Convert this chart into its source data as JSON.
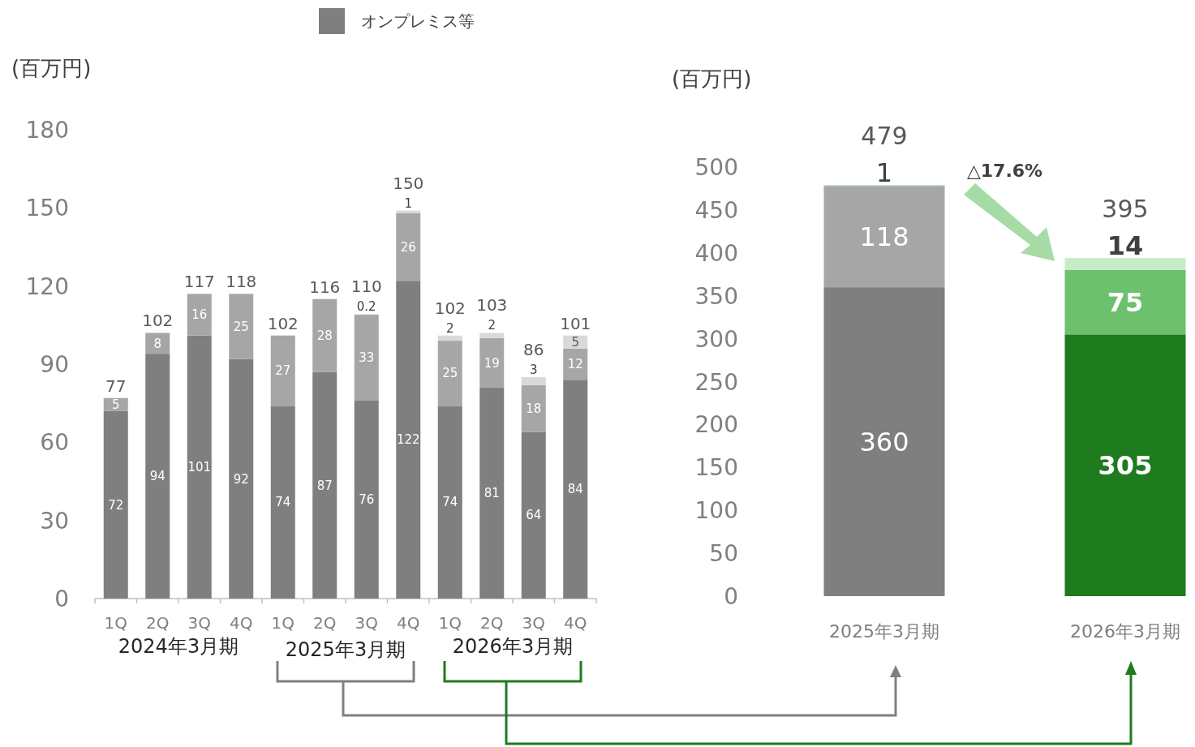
{
  "chart_data": [
    {
      "type": "bar",
      "stacked": true,
      "ylabel": "(百万円)",
      "legend": "top",
      "data_labels": true,
      "categories": [
        "1Q",
        "2Q",
        "3Q",
        "4Q",
        "1Q",
        "2Q",
        "3Q",
        "4Q",
        "1Q",
        "2Q",
        "3Q",
        "4Q"
      ],
      "series": [
        {
          "name": "オンプレミス等",
          "color": "#7f7f7f",
          "values": [
            72,
            94,
            101,
            92,
            74,
            87,
            76,
            122,
            74,
            81,
            64,
            84
          ]
        },
        {
          "color": "#a6a6a6",
          "values": [
            5,
            8,
            16,
            25,
            27,
            28,
            33,
            26,
            25,
            19,
            18,
            12
          ]
        },
        {
          "color": "#d9d9d9",
          "values": [
            null,
            null,
            null,
            null,
            null,
            null,
            0.2,
            1,
            2,
            2,
            3,
            5
          ]
        }
      ],
      "totals": [
        "77",
        "102",
        "117",
        "118",
        "102",
        "116",
        "110",
        "150",
        "102",
        "103",
        "86",
        "101"
      ],
      "ylim": [
        0,
        180
      ],
      "yticks": [
        0,
        30,
        60,
        90,
        120,
        150,
        180
      ],
      "annotations": [
        "2024年3月期",
        "2025年3月期",
        "2026年3月期"
      ]
    },
    {
      "type": "bar",
      "stacked": true,
      "ylabel": "(百万円)",
      "data_labels": true,
      "categories": [
        "2025年3月期",
        "2026年3月期"
      ],
      "series": [
        {
          "colors": [
            "#7f7f7f",
            "#1e7b1e"
          ],
          "values": [
            360,
            305
          ]
        },
        {
          "colors": [
            "#a6a6a6",
            "#6dc06d"
          ],
          "values": [
            118,
            75
          ]
        },
        {
          "colors": [
            "#a9d8a9",
            "#c8ebc8"
          ],
          "values": [
            1,
            14
          ]
        }
      ],
      "totals": [
        "479",
        "395"
      ],
      "ylim": [
        0,
        500
      ],
      "yticks": [
        0,
        50,
        100,
        150,
        200,
        250,
        300,
        350,
        400,
        450,
        500
      ],
      "annotations": [
        "△**17.6%**"
      ]
    }
  ]
}
